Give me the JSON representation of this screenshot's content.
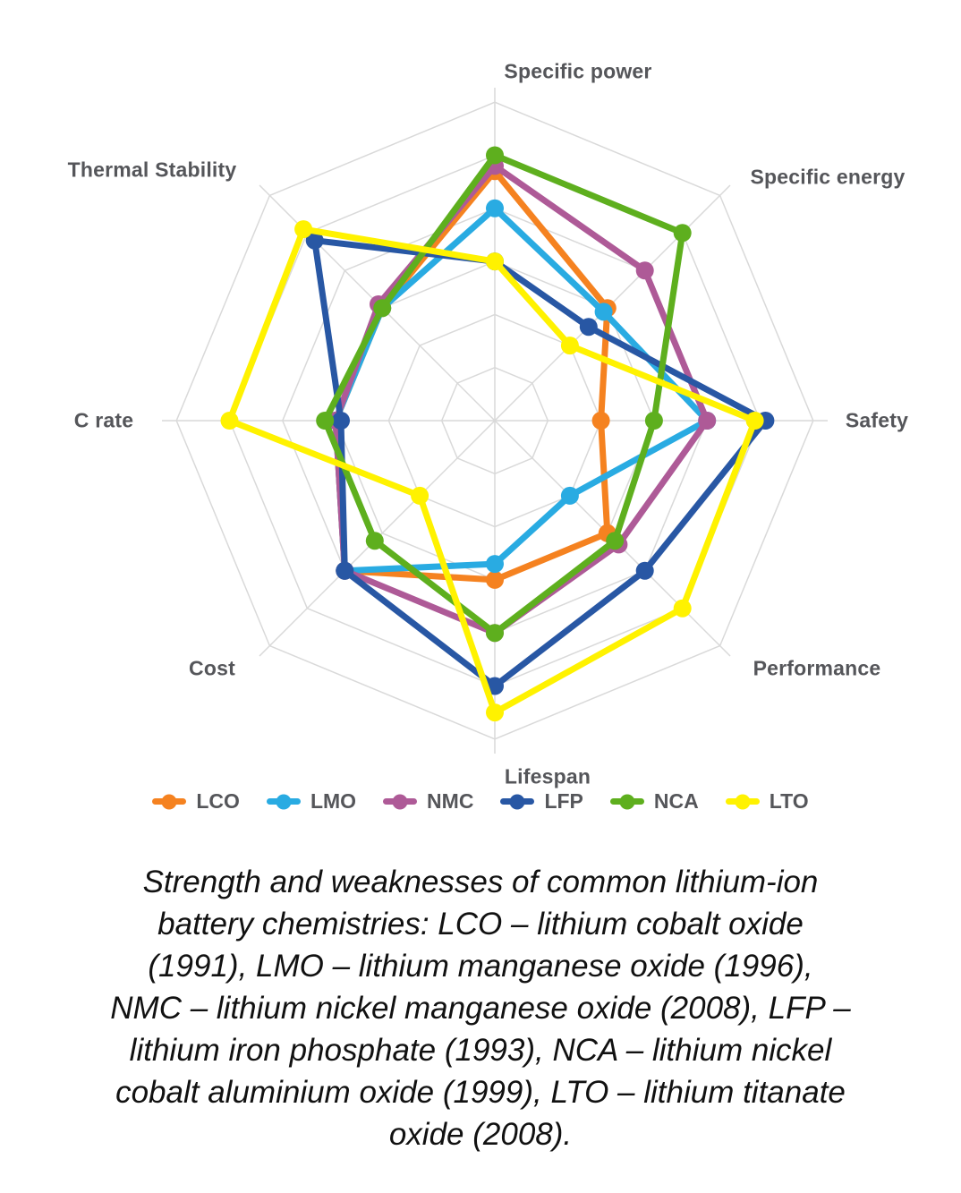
{
  "chart_data": {
    "type": "radar",
    "axes": [
      "Specific power",
      "Specific energy",
      "Safety",
      "Performance",
      "Lifespan",
      "Cost",
      "C rate",
      "Thermal Stability"
    ],
    "scale": {
      "min": 0,
      "max": 6,
      "rings": 6,
      "grid": "on"
    },
    "series": [
      {
        "name": "LCO",
        "color": "#F58220",
        "values": [
          4.7,
          3.0,
          2.0,
          3.0,
          3.0,
          4.0,
          3.0,
          3.0
        ]
      },
      {
        "name": "LMO",
        "color": "#29ABE2",
        "values": [
          4.0,
          2.9,
          4.0,
          2.0,
          2.7,
          4.0,
          3.0,
          3.0
        ]
      },
      {
        "name": "NMC",
        "color": "#AE5A97",
        "values": [
          4.8,
          4.0,
          4.0,
          3.3,
          4.0,
          4.0,
          3.0,
          3.1
        ]
      },
      {
        "name": "LFP",
        "color": "#2857A4",
        "values": [
          3.0,
          2.5,
          5.1,
          4.0,
          5.0,
          4.0,
          2.9,
          4.8
        ]
      },
      {
        "name": "NCA",
        "color": "#5EAF1E",
        "values": [
          5.0,
          5.0,
          3.0,
          3.2,
          4.0,
          3.2,
          3.2,
          3.0
        ]
      },
      {
        "name": "LTO",
        "color": "#FFF200",
        "values": [
          3.0,
          2.0,
          4.9,
          5.0,
          5.5,
          2.0,
          5.0,
          5.1
        ]
      }
    ],
    "legend_position": "bottom",
    "grid_color": "#D9D9D9",
    "label_color": "#55565A"
  },
  "caption": {
    "lines": [
      "Strength and weaknesses of common lithium-ion",
      "battery chemistries: LCO – lithium cobalt oxide",
      "(1991), LMO – lithium manganese oxide (1996),",
      "NMC – lithium nickel manganese oxide (2008), LFP –",
      "lithium iron phosphate (1993), NCA – lithium nickel",
      "cobalt aluminium oxide (1999), LTO – lithium titanate",
      "oxide (2008)."
    ]
  }
}
